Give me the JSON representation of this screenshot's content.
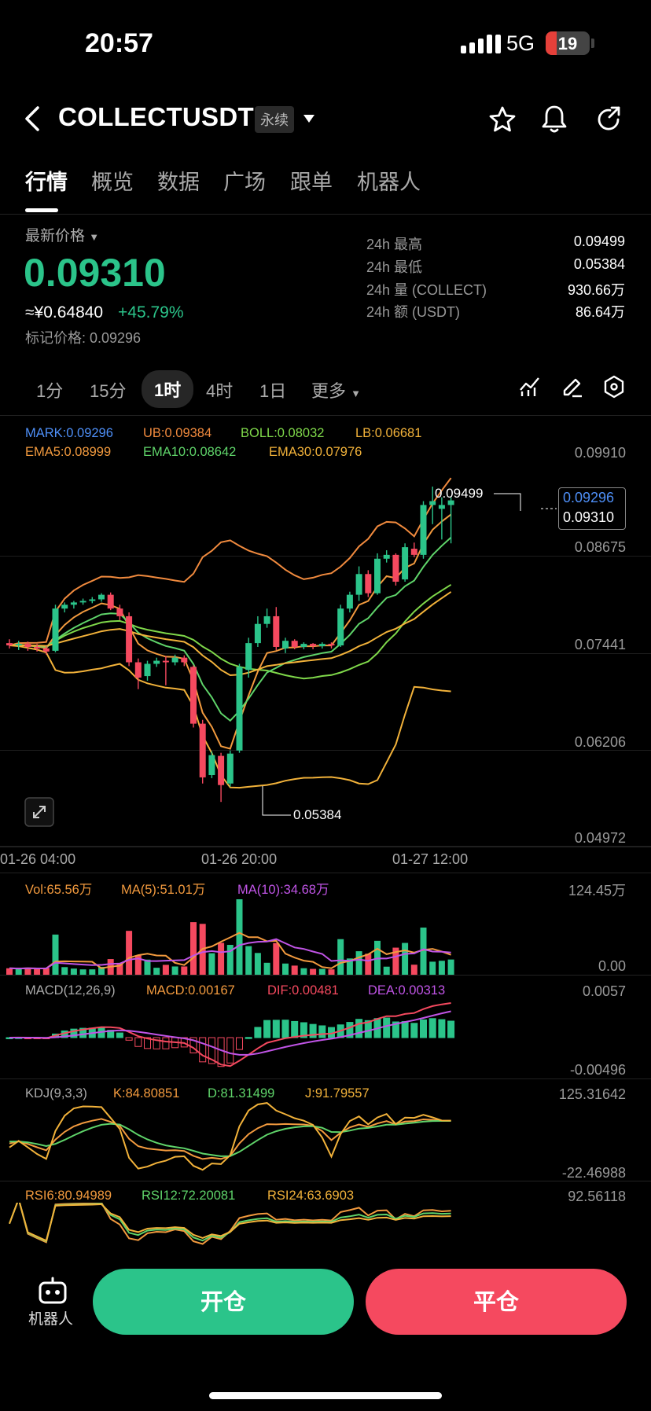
{
  "status": {
    "time": "20:57",
    "network": "5G",
    "battery": "19"
  },
  "header": {
    "title": "COLLECTUSDT",
    "tag": "永续"
  },
  "tabs": [
    "行情",
    "概览",
    "数据",
    "广场",
    "跟单",
    "机器人"
  ],
  "price": {
    "label": "最新价格",
    "value": "0.09310",
    "cny": "≈¥0.64840",
    "change": "+45.79%",
    "mark": "标记价格: 0.09296"
  },
  "stats": [
    {
      "label": "24h  最高",
      "value": "0.09499"
    },
    {
      "label": "24h  最低",
      "value": "0.05384"
    },
    {
      "label": "24h  量 (COLLECT)",
      "value": "930.66万"
    },
    {
      "label": "24h  额 (USDT)",
      "value": "86.64万"
    }
  ],
  "intervals": [
    "1分",
    "15分",
    "1时",
    "4时",
    "1日",
    "更多"
  ],
  "indicators": {
    "row1": [
      {
        "text": "MARK:0.09296",
        "color": "#4e8ff7"
      },
      {
        "text": "UB:0.09384",
        "color": "#f08a3e"
      },
      {
        "text": "BOLL:0.08032",
        "color": "#7fd84a"
      },
      {
        "text": "LB:0.06681",
        "color": "#f2b23a"
      }
    ],
    "row2": [
      {
        "text": "EMA5:0.08999",
        "color": "#f29a3e"
      },
      {
        "text": "EMA10:0.08642",
        "color": "#5fd46a"
      },
      {
        "text": "EMA30:0.07976",
        "color": "#f2b23a"
      }
    ]
  },
  "price_axis": [
    "0.09910",
    "0.08675",
    "0.07441",
    "0.06206",
    "0.04972"
  ],
  "price_tags": {
    "mark": "0.09296",
    "last": "0.09310",
    "high": "0.09499",
    "low": "0.05384"
  },
  "time_axis": [
    "01-26 04:00",
    "01-26 20:00",
    "01-27 12:00"
  ],
  "vol": {
    "labels": [
      {
        "text": "Vol:65.56万",
        "color": "#f29a3e"
      },
      {
        "text": "MA(5):51.01万",
        "color": "#f29a3e"
      },
      {
        "text": "MA(10):34.68万",
        "color": "#c054e6"
      }
    ],
    "axis_top": "124.45万",
    "axis_bottom": "0.00"
  },
  "macd": {
    "labels": [
      {
        "text": "MACD(12,26,9)",
        "color": "#aaa"
      },
      {
        "text": "MACD:0.00167",
        "color": "#f29a3e"
      },
      {
        "text": "DIF:0.00481",
        "color": "#f5495f"
      },
      {
        "text": "DEA:0.00313",
        "color": "#c054e6"
      }
    ],
    "axis_top": "0.0057",
    "axis_bottom": "-0.00496"
  },
  "kdj": {
    "labels": [
      {
        "text": "KDJ(9,3,3)",
        "color": "#aaa"
      },
      {
        "text": "K:84.80851",
        "color": "#f29a3e"
      },
      {
        "text": "D:81.31499",
        "color": "#5fd46a"
      },
      {
        "text": "J:91.79557",
        "color": "#f2b23a"
      }
    ],
    "axis_top": "125.31642",
    "axis_bottom": "-22.46988"
  },
  "rsi": {
    "labels": [
      {
        "text": "RSI6:80.94989",
        "color": "#f29a3e"
      },
      {
        "text": "RSI12:72.20081",
        "color": "#5fd46a"
      },
      {
        "text": "RSI24:63.6903",
        "color": "#f2b23a"
      }
    ],
    "axis_top": "92.56118"
  },
  "bottom": {
    "robot": "机器人",
    "open": "开仓",
    "close": "平仓"
  },
  "chart_data": {
    "type": "candlestick",
    "ylim": [
      0.04972,
      0.0991
    ],
    "candles": [
      [
        0.0745,
        0.0742,
        0.075,
        0.0738
      ],
      [
        0.0742,
        0.0744,
        0.0748,
        0.0736
      ],
      [
        0.0744,
        0.074,
        0.0747,
        0.0735
      ],
      [
        0.074,
        0.0738,
        0.0744,
        0.0734
      ],
      [
        0.0738,
        0.0734,
        0.0741,
        0.073
      ],
      [
        0.0735,
        0.079,
        0.0795,
        0.0733
      ],
      [
        0.079,
        0.0795,
        0.0798,
        0.0785
      ],
      [
        0.0795,
        0.0798,
        0.08,
        0.079
      ],
      [
        0.0798,
        0.08,
        0.0803,
        0.0795
      ],
      [
        0.08,
        0.0802,
        0.0805,
        0.0797
      ],
      [
        0.0802,
        0.0808,
        0.081,
        0.0799
      ],
      [
        0.0808,
        0.079,
        0.0811,
        0.0788
      ],
      [
        0.079,
        0.078,
        0.0795,
        0.0775
      ],
      [
        0.078,
        0.072,
        0.0785,
        0.0715
      ],
      [
        0.072,
        0.07,
        0.0725,
        0.0685
      ],
      [
        0.0702,
        0.0718,
        0.0722,
        0.0696
      ],
      [
        0.0718,
        0.0722,
        0.0726,
        0.0714
      ],
      [
        0.0722,
        0.072,
        0.0728,
        0.069
      ],
      [
        0.072,
        0.0726,
        0.073,
        0.0716
      ],
      [
        0.0726,
        0.072,
        0.0729,
        0.0715
      ],
      [
        0.0714,
        0.064,
        0.0716,
        0.0635
      ],
      [
        0.064,
        0.057,
        0.0645,
        0.0562
      ],
      [
        0.0573,
        0.0599,
        0.0604,
        0.0569
      ],
      [
        0.0598,
        0.056,
        0.0602,
        0.0538
      ],
      [
        0.0562,
        0.0601,
        0.0605,
        0.0558
      ],
      [
        0.0605,
        0.0714,
        0.0718,
        0.0602
      ],
      [
        0.071,
        0.0745,
        0.0752,
        0.07
      ],
      [
        0.0745,
        0.077,
        0.078,
        0.074
      ],
      [
        0.077,
        0.078,
        0.079,
        0.0765
      ],
      [
        0.078,
        0.074,
        0.0792,
        0.0736
      ],
      [
        0.0738,
        0.0748,
        0.0752,
        0.0732
      ],
      [
        0.0748,
        0.074,
        0.075,
        0.0737
      ],
      [
        0.074,
        0.0744,
        0.0746,
        0.0737
      ],
      [
        0.0744,
        0.0741,
        0.0745,
        0.0737
      ],
      [
        0.0741,
        0.0744,
        0.0746,
        0.0738
      ],
      [
        0.0744,
        0.0742,
        0.0746,
        0.0738
      ],
      [
        0.0742,
        0.079,
        0.0795,
        0.074
      ],
      [
        0.079,
        0.0808,
        0.0812,
        0.0785
      ],
      [
        0.0808,
        0.0835,
        0.0845,
        0.08
      ],
      [
        0.0835,
        0.081,
        0.084,
        0.0805
      ],
      [
        0.081,
        0.0855,
        0.0862,
        0.0808
      ],
      [
        0.0855,
        0.086,
        0.0866,
        0.085
      ],
      [
        0.086,
        0.0825,
        0.0862,
        0.082
      ],
      [
        0.0828,
        0.087,
        0.0875,
        0.0825
      ],
      [
        0.0868,
        0.086,
        0.0876,
        0.0857
      ],
      [
        0.086,
        0.0925,
        0.093,
        0.0855
      ],
      [
        0.0925,
        0.093,
        0.0949,
        0.09
      ],
      [
        0.092,
        0.0925,
        0.0935,
        0.088
      ],
      [
        0.0925,
        0.0931,
        0.0935,
        0.0875
      ]
    ]
  }
}
